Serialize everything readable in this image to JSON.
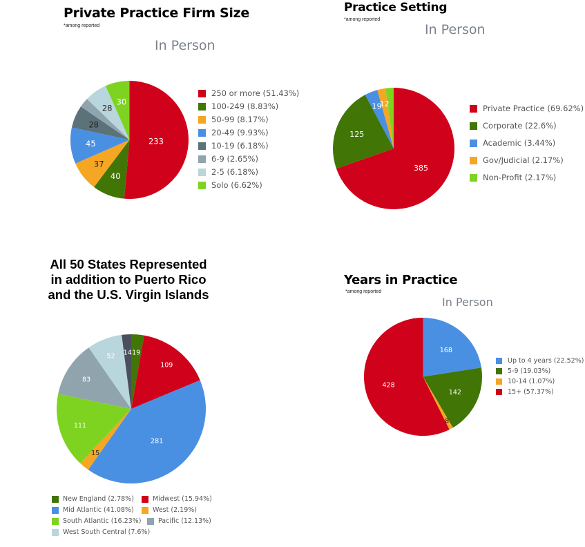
{
  "charts": [
    {
      "id": "firm",
      "title": "Private Practice Firm Size",
      "note": "*among reported",
      "subtitle": "In Person",
      "type": "pie",
      "slices": [
        {
          "label": "250 or more (51.43%)",
          "value": 233,
          "color": "#d0021b"
        },
        {
          "label": "100-249 (8.83%)",
          "value": 40,
          "color": "#417505"
        },
        {
          "label": "50-99 (8.17%)",
          "value": 37,
          "color": "#f5a623"
        },
        {
          "label": "20-49 (9.93%)",
          "value": 45,
          "color": "#4a90e2"
        },
        {
          "label": "10-19 (6.18%)",
          "value": 28,
          "color": "#5c7279"
        },
        {
          "label": "6-9 (2.65%)",
          "value": 12,
          "color": "#90a4ae"
        },
        {
          "label": "2-5 (6.18%)",
          "value": 28,
          "color": "#b9d6dc"
        },
        {
          "label": "Solo (6.62%)",
          "value": 30,
          "color": "#7ed321"
        }
      ],
      "data_labels": [
        "233",
        "40",
        "37",
        "45",
        "28",
        "",
        "28",
        "30"
      ]
    },
    {
      "id": "setting",
      "title": "Practice Setting",
      "note": "*among reported",
      "subtitle": "In Person",
      "type": "pie",
      "slices": [
        {
          "label": "Private Practice (69.62%)",
          "value": 385,
          "color": "#d0021b"
        },
        {
          "label": "Corporate (22.6%)",
          "value": 125,
          "color": "#417505"
        },
        {
          "label": "Academic (3.44%)",
          "value": 19,
          "color": "#4a90e2"
        },
        {
          "label": "Gov/Judicial (2.17%)",
          "value": 12,
          "color": "#f5a623"
        },
        {
          "label": "Non-Profit (2.17%)",
          "value": 12,
          "color": "#7ed321"
        }
      ],
      "data_labels": [
        "385",
        "125",
        "19",
        "12",
        ""
      ]
    },
    {
      "id": "states",
      "title_lines": [
        "All 50 States Represented",
        "in addition to Puerto Rico",
        "and the U.S. Virgin Islands"
      ],
      "type": "pie",
      "slices": [
        {
          "label": "",
          "value": 19,
          "color": "#417505"
        },
        {
          "label": "Midwest (15.94%)",
          "value": 109,
          "color": "#d0021b"
        },
        {
          "label": "Mid Atlantic (41.08%)",
          "value": 281,
          "color": "#4a90e2"
        },
        {
          "label": "West (2.19%)",
          "value": 15,
          "color": "#f5a623"
        },
        {
          "label": "South Atlantic (16.23%)",
          "value": 111,
          "color": "#7ed321"
        },
        {
          "label": "Pacific (12.13%)",
          "value": 83,
          "color": "#90a4ae"
        },
        {
          "label": "West South Central (7.6%)",
          "value": 52,
          "color": "#b9d6dc"
        },
        {
          "label": "",
          "value": 14,
          "color": "#4a4f5c"
        }
      ],
      "data_labels": [
        "19",
        "109",
        "281",
        "15",
        "111",
        "83",
        "52",
        "14"
      ],
      "legend": [
        {
          "label": "New England (2.78%)",
          "color": "#417505"
        },
        {
          "label": "Midwest (15.94%)",
          "color": "#d0021b"
        },
        {
          "label": "Mid Atlantic (41.08%)",
          "color": "#4a90e2"
        },
        {
          "label": "West (2.19%)",
          "color": "#f5a623"
        },
        {
          "label": "South Atlantic (16.23%)",
          "color": "#7ed321"
        },
        {
          "label": "Pacific (12.13%)",
          "color": "#90a4ae"
        },
        {
          "label": "West South Central (7.6%)",
          "color": "#b9d6dc"
        }
      ]
    },
    {
      "id": "years",
      "title": "Years in Practice",
      "note": "*among reported",
      "subtitle": "In Person",
      "type": "pie",
      "slices": [
        {
          "label": "Up to 4 years (22.52%)",
          "value": 168,
          "color": "#4a90e2"
        },
        {
          "label": "5-9 (19.03%)",
          "value": 142,
          "color": "#417505"
        },
        {
          "label": "10-14 (1.07%)",
          "value": 8,
          "color": "#f5a623"
        },
        {
          "label": "15+ (57.37%)",
          "value": 428,
          "color": "#d0021b"
        }
      ],
      "data_labels": [
        "168",
        "142",
        "8",
        "428"
      ]
    }
  ],
  "chart_data": [
    {
      "type": "pie",
      "title": "Private Practice Firm Size",
      "subtitle": "In Person",
      "categories": [
        "250 or more",
        "100-249",
        "50-99",
        "20-49",
        "10-19",
        "6-9",
        "2-5",
        "Solo"
      ],
      "values": [
        233,
        40,
        37,
        45,
        28,
        12,
        28,
        30
      ],
      "percentages": [
        51.43,
        8.83,
        8.17,
        9.93,
        6.18,
        2.65,
        6.18,
        6.62
      ],
      "legend": "right"
    },
    {
      "type": "pie",
      "title": "Practice Setting",
      "subtitle": "In Person",
      "categories": [
        "Private Practice",
        "Corporate",
        "Academic",
        "Gov/Judicial",
        "Non-Profit"
      ],
      "values": [
        385,
        125,
        19,
        12,
        12
      ],
      "percentages": [
        69.62,
        22.6,
        3.44,
        2.17,
        2.17
      ],
      "legend": "right"
    },
    {
      "type": "pie",
      "title": "All 50 States Represented in addition to Puerto Rico and the U.S. Virgin Islands",
      "categories": [
        "New England",
        "Midwest",
        "Mid Atlantic",
        "West",
        "South Atlantic",
        "Pacific",
        "West South Central",
        ""
      ],
      "values": [
        19,
        109,
        281,
        15,
        111,
        83,
        52,
        14
      ],
      "percentages": [
        2.78,
        15.94,
        41.08,
        2.19,
        16.23,
        12.13,
        7.6,
        null
      ],
      "legend": "bottom"
    },
    {
      "type": "pie",
      "title": "Years in Practice",
      "subtitle": "In Person",
      "categories": [
        "Up to 4 years",
        "5-9",
        "10-14",
        "15+"
      ],
      "values": [
        168,
        142,
        8,
        428
      ],
      "percentages": [
        22.52,
        19.03,
        1.07,
        57.37
      ],
      "legend": "right"
    }
  ]
}
